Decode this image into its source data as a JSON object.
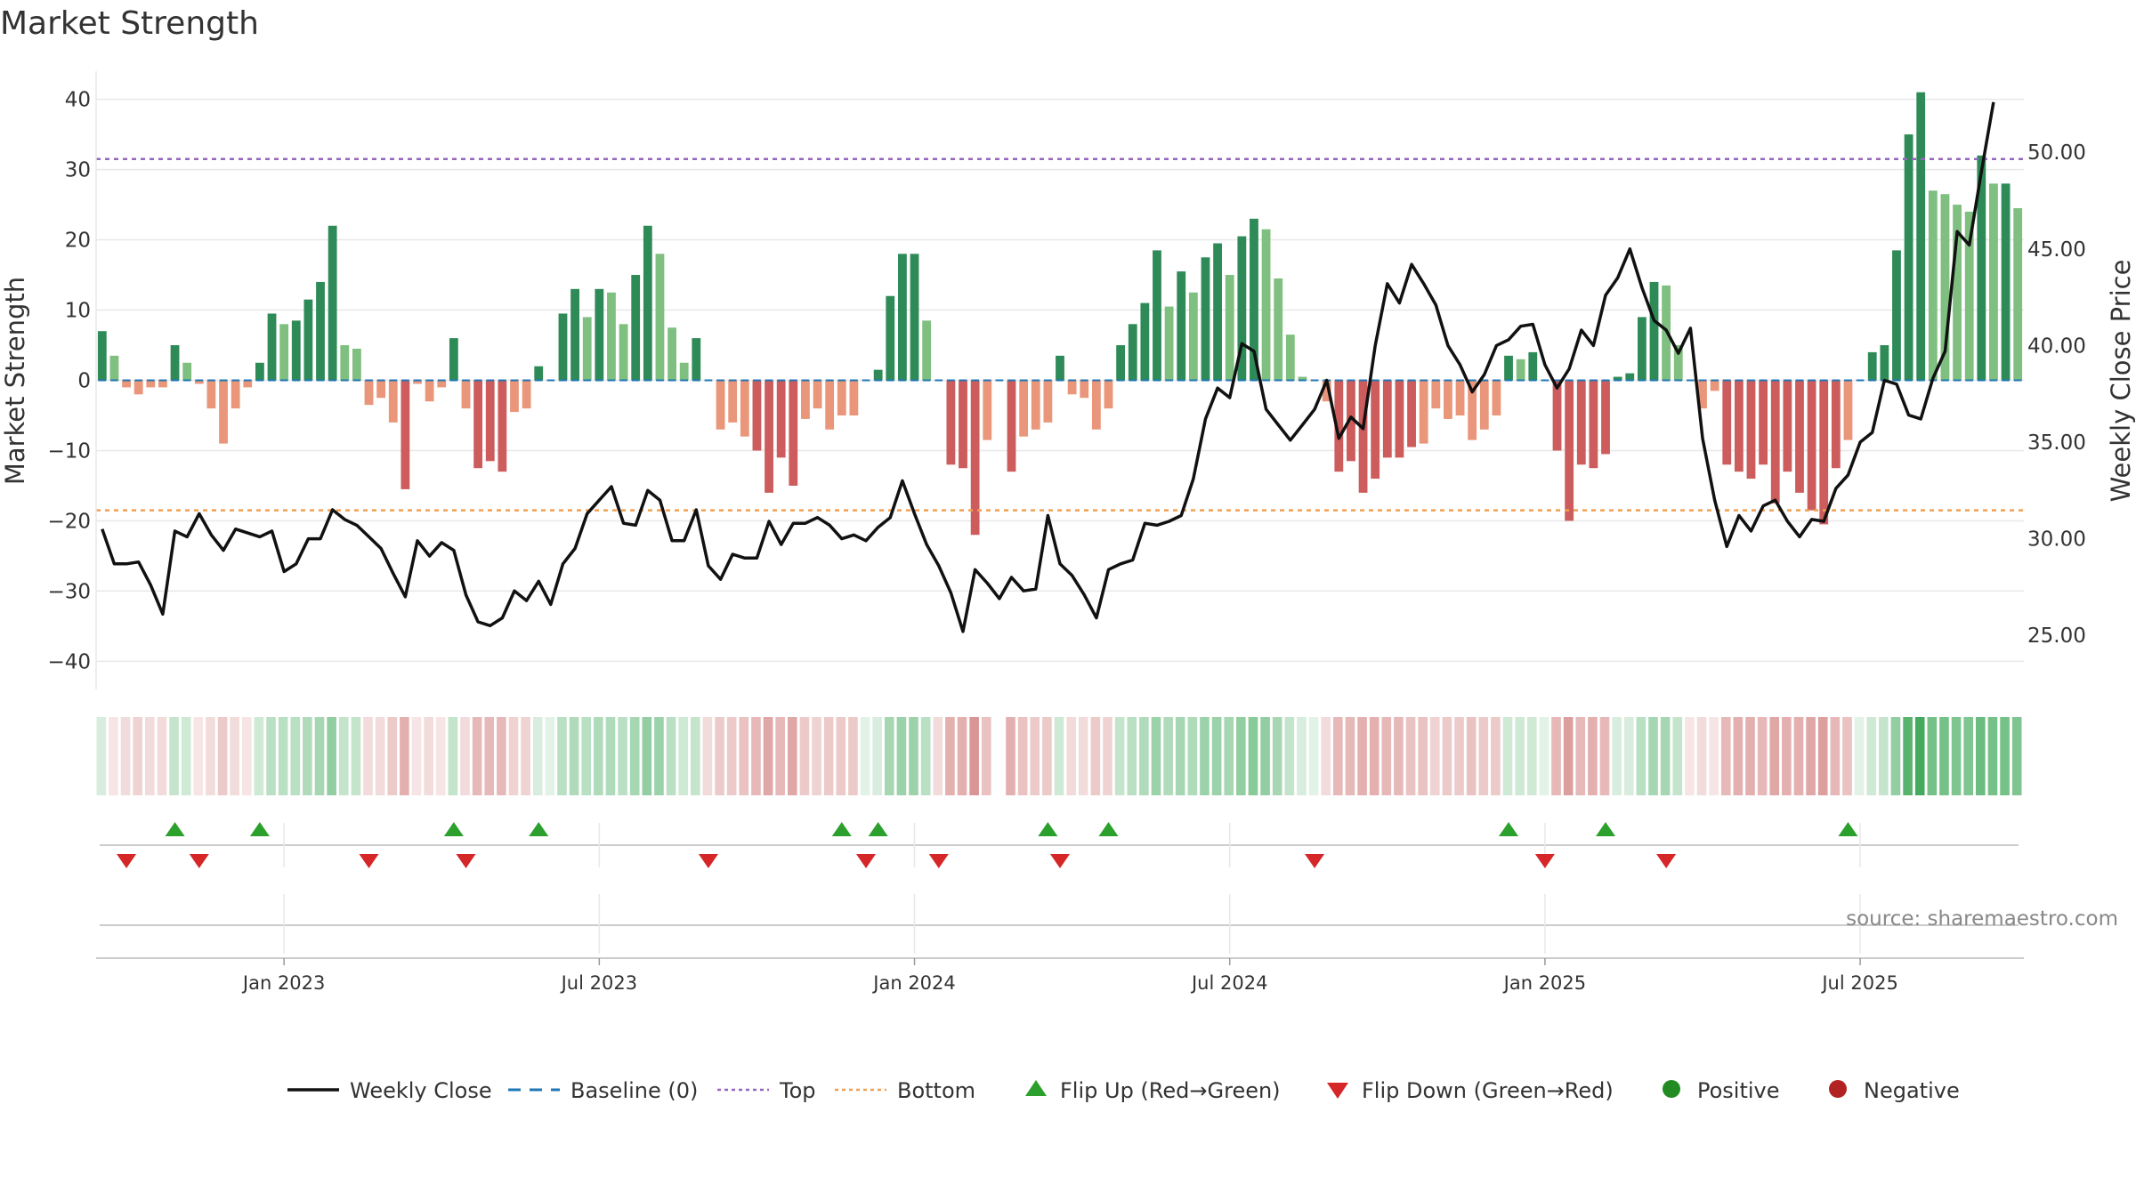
{
  "title": "Market Strength",
  "source_text": "source: sharemaestro.com",
  "chart_data": {
    "type": "bar+line",
    "title": "Market Strength",
    "ylabel_left": "Market Strength",
    "ylabel_right": "Weekly Close Price",
    "ylim_left": [
      -44,
      44
    ],
    "ylim_right": [
      22.2,
      54.2
    ],
    "yticks_left": [
      40,
      30,
      20,
      10,
      0,
      -10,
      -20,
      -30,
      -40
    ],
    "ytick_labels_left": [
      "40",
      "30",
      "20",
      "10",
      "0",
      "−10",
      "−20",
      "−30",
      "−40"
    ],
    "yticks_right": [
      50,
      45,
      40,
      35,
      30,
      25
    ],
    "ytick_labels_right": [
      "50.00",
      "45.00",
      "40.00",
      "35.00",
      "30.00",
      "25.00"
    ],
    "reference_lines": {
      "top": 31.5,
      "bottom": -18.5,
      "baseline": 0
    },
    "x_ticks": [
      {
        "label": "Jan 2023",
        "week": 15
      },
      {
        "label": "Jul 2023",
        "week": 41
      },
      {
        "label": "Jan 2024",
        "week": 67
      },
      {
        "label": "Jul 2024",
        "week": 93
      },
      {
        "label": "Jan 2025",
        "week": 119
      },
      {
        "label": "Jul 2025",
        "week": 145
      }
    ],
    "strength": [
      7,
      3.5,
      -1,
      -2,
      -1,
      -1,
      5,
      2.5,
      -0.5,
      -4,
      -9,
      -4,
      -1,
      2.5,
      9.5,
      8,
      8.5,
      11.5,
      14,
      22,
      5,
      4.5,
      -3.5,
      -2.5,
      -6,
      -15.5,
      -0.5,
      -3,
      -1,
      6,
      -4,
      -12.5,
      -11.5,
      -13,
      -4.5,
      -4,
      2,
      0,
      9.5,
      13,
      9,
      13,
      12.5,
      8,
      15,
      22,
      18,
      7.5,
      2.5,
      6,
      0,
      -7,
      -6,
      -8,
      -10,
      -16,
      -11,
      -15,
      -5.5,
      -4,
      -7,
      -5,
      -5,
      0,
      1.5,
      12,
      18,
      18,
      8.5,
      0,
      -12,
      -12.5,
      -22,
      -8.5,
      0,
      -13,
      -8,
      -7,
      -6,
      3.5,
      -2,
      -2.5,
      -7,
      -4,
      5,
      8,
      11,
      18.5,
      10.5,
      15.5,
      12.5,
      17.5,
      19.5,
      15,
      20.5,
      23,
      21.5,
      14.5,
      6.5,
      0.5,
      0,
      -3,
      -13,
      -11.5,
      -16,
      -14,
      -11,
      -11,
      -9.5,
      -9,
      -4,
      -5.5,
      -5,
      -8.5,
      -7,
      -5,
      3.5,
      3,
      4,
      0,
      -10,
      -20,
      -12,
      -12.5,
      -10.5,
      0.5,
      1,
      9,
      14,
      13.5,
      5,
      0,
      -4,
      -1.5,
      -12,
      -13,
      -14,
      -12,
      -17.5,
      -13,
      -16,
      -18.5,
      -20.5,
      -12.5,
      -8.5,
      0,
      4,
      5,
      18.5,
      35,
      41,
      27,
      26.5,
      25,
      24,
      32,
      28,
      28,
      24.5
    ],
    "weekly_close": [
      30.5,
      28.7,
      28.7,
      28.8,
      27.6,
      26.1,
      30.4,
      30.1,
      31.3,
      30.2,
      29.4,
      30.5,
      30.3,
      30.1,
      30.4,
      28.3,
      28.7,
      30.0,
      30.0,
      31.5,
      31.0,
      30.7,
      30.1,
      29.5,
      28.2,
      27.0,
      29.9,
      29.1,
      29.8,
      29.4,
      27.1,
      25.7,
      25.5,
      25.9,
      27.3,
      26.8,
      27.8,
      26.6,
      28.7,
      29.5,
      31.3,
      32.0,
      32.7,
      30.8,
      30.7,
      32.5,
      32.0,
      29.9,
      29.9,
      31.5,
      28.6,
      27.9,
      29.2,
      29.0,
      29.0,
      30.9,
      29.7,
      30.8,
      30.8,
      31.1,
      30.7,
      30.0,
      30.2,
      29.9,
      30.6,
      31.1,
      33.0,
      31.3,
      29.7,
      28.6,
      27.2,
      25.2,
      28.4,
      27.7,
      26.9,
      28.0,
      27.3,
      27.4,
      31.2,
      28.7,
      28.1,
      27.1,
      25.9,
      28.4,
      28.7,
      28.9,
      30.8,
      30.7,
      30.9,
      31.2,
      33.1,
      36.2,
      37.8,
      37.3,
      40.1,
      39.7,
      36.7,
      35.9,
      35.1,
      35.9,
      36.7,
      38.2,
      35.2,
      36.3,
      35.7,
      40.0,
      43.2,
      42.2,
      44.2,
      43.2,
      42.1,
      40.0,
      39.0,
      37.6,
      38.5,
      40.0,
      40.3,
      41.0,
      41.1,
      39.0,
      37.8,
      38.8,
      40.8,
      40.0,
      42.6,
      43.5,
      45.0,
      43.0,
      41.3,
      40.8,
      39.6,
      40.9,
      35.2,
      32.0,
      29.6,
      31.2,
      30.4,
      31.7,
      32.0,
      30.9,
      30.1,
      31.0,
      30.9,
      32.6,
      33.3,
      35.0,
      35.5,
      38.2,
      38.0,
      36.4,
      36.2,
      38.3,
      39.7,
      45.9,
      45.2,
      49.0,
      52.6
    ]
  },
  "regime_strip": {
    "state": [
      "pos",
      "neg",
      "neg",
      "neg",
      "neg",
      "neg",
      "pos",
      "pos",
      "neg",
      "neg",
      "neg",
      "neg",
      "neg",
      "pos",
      "pos",
      "pos",
      "pos",
      "pos",
      "pos",
      "pos",
      "pos",
      "pos",
      "neg",
      "neg",
      "neg",
      "neg",
      "neg",
      "neg",
      "neg",
      "pos",
      "neg",
      "neg",
      "neg",
      "neg",
      "neg",
      "neg",
      "pos",
      "pos",
      "pos",
      "pos",
      "pos",
      "pos",
      "pos",
      "pos",
      "pos",
      "pos",
      "pos",
      "pos",
      "pos",
      "pos",
      "neg",
      "neg",
      "neg",
      "neg",
      "neg",
      "neg",
      "neg",
      "neg",
      "neg",
      "neg",
      "neg",
      "neg",
      "neg",
      "pos",
      "pos",
      "pos",
      "pos",
      "pos",
      "pos",
      "neg",
      "neg",
      "neg",
      "neg",
      "neg",
      "gap",
      "neg",
      "neg",
      "neg",
      "neg",
      "pos",
      "neg",
      "neg",
      "neg",
      "neg",
      "pos",
      "pos",
      "pos",
      "pos",
      "pos",
      "pos",
      "pos",
      "pos",
      "pos",
      "pos",
      "pos",
      "pos",
      "pos",
      "pos",
      "pos",
      "pos",
      "pos",
      "neg",
      "neg",
      "neg",
      "neg",
      "neg",
      "neg",
      "neg",
      "neg",
      "neg",
      "neg",
      "neg",
      "neg",
      "neg",
      "neg",
      "neg",
      "pos",
      "pos",
      "pos",
      "pos",
      "neg",
      "neg",
      "neg",
      "neg",
      "neg",
      "pos",
      "pos",
      "pos",
      "pos",
      "pos",
      "pos",
      "neg",
      "neg",
      "neg",
      "neg",
      "neg",
      "neg",
      "neg",
      "neg",
      "neg",
      "neg",
      "neg",
      "neg",
      "neg",
      "neg",
      "pos",
      "pos",
      "pos",
      "pos",
      "pos",
      "pos",
      "pos",
      "pos",
      "pos",
      "pos",
      "pos",
      "pos",
      "pos",
      "pos"
    ],
    "intensity": [
      0.2,
      0.15,
      0.2,
      0.25,
      0.2,
      0.2,
      0.3,
      0.25,
      0.15,
      0.2,
      0.3,
      0.2,
      0.15,
      0.25,
      0.35,
      0.35,
      0.35,
      0.4,
      0.45,
      0.55,
      0.3,
      0.3,
      0.2,
      0.2,
      0.3,
      0.45,
      0.15,
      0.2,
      0.15,
      0.3,
      0.2,
      0.4,
      0.4,
      0.4,
      0.25,
      0.25,
      0.2,
      0.15,
      0.35,
      0.4,
      0.35,
      0.4,
      0.4,
      0.35,
      0.45,
      0.55,
      0.5,
      0.35,
      0.25,
      0.3,
      0.2,
      0.3,
      0.3,
      0.35,
      0.4,
      0.5,
      0.4,
      0.5,
      0.3,
      0.25,
      0.3,
      0.3,
      0.3,
      0.15,
      0.2,
      0.45,
      0.5,
      0.5,
      0.35,
      0.2,
      0.45,
      0.45,
      0.6,
      0.35,
      0,
      0.45,
      0.35,
      0.3,
      0.3,
      0.25,
      0.2,
      0.2,
      0.3,
      0.25,
      0.3,
      0.35,
      0.4,
      0.5,
      0.4,
      0.45,
      0.4,
      0.5,
      0.5,
      0.45,
      0.55,
      0.6,
      0.55,
      0.45,
      0.3,
      0.2,
      0.15,
      0.2,
      0.4,
      0.4,
      0.45,
      0.45,
      0.4,
      0.4,
      0.35,
      0.35,
      0.25,
      0.3,
      0.3,
      0.35,
      0.3,
      0.3,
      0.25,
      0.25,
      0.25,
      0.15,
      0.4,
      0.55,
      0.4,
      0.45,
      0.4,
      0.2,
      0.2,
      0.35,
      0.45,
      0.45,
      0.3,
      0.15,
      0.2,
      0.15,
      0.4,
      0.45,
      0.45,
      0.4,
      0.5,
      0.45,
      0.45,
      0.5,
      0.55,
      0.4,
      0.35,
      0.15,
      0.25,
      0.3,
      0.55,
      0.85,
      0.95,
      0.7,
      0.7,
      0.65,
      0.65,
      0.75,
      0.7,
      0.7,
      0.65
    ]
  },
  "flip_up_weeks": [
    6,
    13,
    29,
    36,
    61,
    64,
    78,
    83,
    116,
    124,
    144
  ],
  "flip_down_weeks": [
    2,
    8,
    22,
    30,
    50,
    63,
    69,
    79,
    100,
    119,
    129
  ],
  "legend": [
    {
      "label": "Weekly Close",
      "symbol": "line"
    },
    {
      "label": "Baseline (0)",
      "symbol": "dash"
    },
    {
      "label": "Top",
      "symbol": "dot"
    },
    {
      "label": "Bottom",
      "symbol": "dot"
    },
    {
      "label": "Flip Up (Red→Green)",
      "symbol": "triangle-up"
    },
    {
      "label": "Flip Down (Green→Red)",
      "symbol": "triangle-down"
    },
    {
      "label": "Positive",
      "symbol": "circle"
    },
    {
      "label": "Negative",
      "symbol": "circle"
    }
  ],
  "colors": {
    "close_line": "#111111",
    "baseline": "#1f77b4",
    "top_line": "#9467bd",
    "bottom_line": "#f0a050",
    "flip_up": "#2ca02c",
    "flip_down": "#d62728",
    "positive_dot": "#228b22",
    "negative_dot": "#b22222",
    "bar_pos_strong": "#2e8b57",
    "bar_pos_weak": "#7fbf7f",
    "bar_neg_strong": "#cd5c5c",
    "bar_neg_weak": "#e9967a",
    "strip_pos": "#3aa655",
    "strip_neg": "#c0504d",
    "grid": "#e8e8e8",
    "axis": "#cccccc"
  }
}
